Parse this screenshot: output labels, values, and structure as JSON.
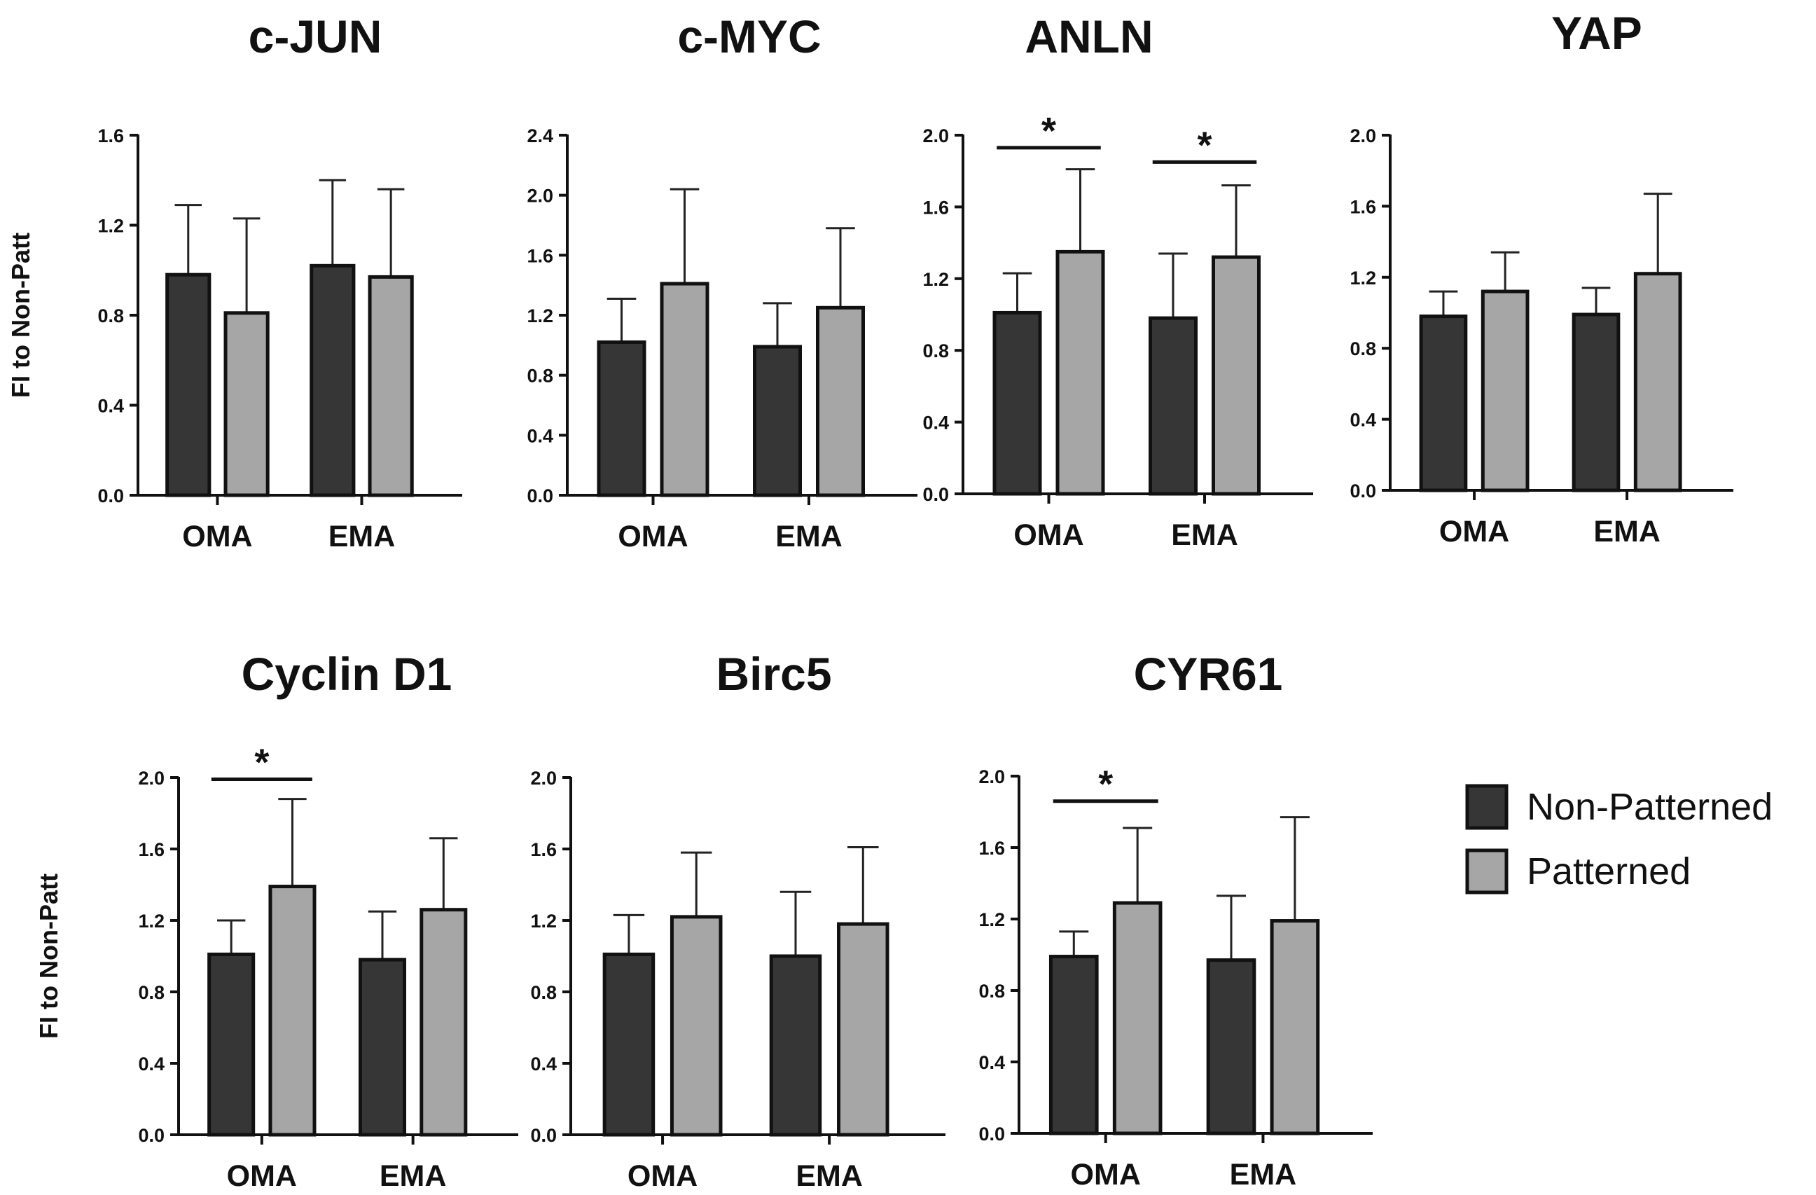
{
  "chart_data": [
    {
      "type": "bar",
      "title": "c-JUN",
      "ylabel": "FI to Non-Patt",
      "xlabel": "",
      "categories": [
        "OMA",
        "EMA"
      ],
      "ylim": [
        0,
        1.6
      ],
      "yticks": [
        "0.0",
        "0.4",
        "0.8",
        "1.2",
        "1.6"
      ],
      "series": [
        {
          "name": "Non-Patterned",
          "values": [
            0.98,
            1.02
          ],
          "errors": [
            0.31,
            0.38
          ]
        },
        {
          "name": "Patterned",
          "values": [
            0.81,
            0.97
          ],
          "errors": [
            0.42,
            0.39
          ]
        }
      ],
      "significance": []
    },
    {
      "type": "bar",
      "title": "c-MYC",
      "ylabel": "",
      "xlabel": "",
      "categories": [
        "OMA",
        "EMA"
      ],
      "ylim": [
        0,
        2.4
      ],
      "yticks": [
        "0.0",
        "0.4",
        "0.8",
        "1.2",
        "1.6",
        "2.0",
        "2.4"
      ],
      "series": [
        {
          "name": "Non-Patterned",
          "values": [
            1.02,
            0.99
          ],
          "errors": [
            0.29,
            0.29
          ]
        },
        {
          "name": "Patterned",
          "values": [
            1.41,
            1.25
          ],
          "errors": [
            0.63,
            0.53
          ]
        }
      ],
      "significance": []
    },
    {
      "type": "bar",
      "title": "ANLN",
      "ylabel": "",
      "xlabel": "",
      "categories": [
        "OMA",
        "EMA"
      ],
      "ylim": [
        0,
        2.0
      ],
      "yticks": [
        "0.0",
        "0.4",
        "0.8",
        "1.2",
        "1.6",
        "2.0"
      ],
      "series": [
        {
          "name": "Non-Patterned",
          "values": [
            1.01,
            0.98
          ],
          "errors": [
            0.22,
            0.36
          ]
        },
        {
          "name": "Patterned",
          "values": [
            1.35,
            1.32
          ],
          "errors": [
            0.46,
            0.4
          ]
        }
      ],
      "significance": [
        {
          "category": "OMA",
          "label": "*",
          "level": 1.93
        },
        {
          "category": "EMA",
          "label": "*",
          "level": 1.85
        }
      ]
    },
    {
      "type": "bar",
      "title": "YAP",
      "ylabel": "",
      "xlabel": "",
      "categories": [
        "OMA",
        "EMA"
      ],
      "ylim": [
        0,
        2.0
      ],
      "yticks": [
        "0.0",
        "0.4",
        "0.8",
        "1.2",
        "1.6",
        "2.0"
      ],
      "series": [
        {
          "name": "Non-Patterned",
          "values": [
            0.98,
            0.99
          ],
          "errors": [
            0.14,
            0.15
          ]
        },
        {
          "name": "Patterned",
          "values": [
            1.12,
            1.22
          ],
          "errors": [
            0.22,
            0.45
          ]
        }
      ],
      "significance": []
    },
    {
      "type": "bar",
      "title": "Cyclin D1",
      "ylabel": "FI to Non-Patt",
      "xlabel": "",
      "categories": [
        "OMA",
        "EMA"
      ],
      "ylim": [
        0,
        2.0
      ],
      "yticks": [
        "0.0",
        "0.4",
        "0.8",
        "1.2",
        "1.6",
        "2.0"
      ],
      "series": [
        {
          "name": "Non-Patterned",
          "values": [
            1.01,
            0.98
          ],
          "errors": [
            0.19,
            0.27
          ]
        },
        {
          "name": "Patterned",
          "values": [
            1.39,
            1.26
          ],
          "errors": [
            0.49,
            0.4
          ]
        }
      ],
      "significance": [
        {
          "category": "OMA",
          "label": "*",
          "level": 1.99
        }
      ]
    },
    {
      "type": "bar",
      "title": "Birc5",
      "ylabel": "",
      "xlabel": "",
      "categories": [
        "OMA",
        "EMA"
      ],
      "ylim": [
        0,
        2.0
      ],
      "yticks": [
        "0.0",
        "0.4",
        "0.8",
        "1.2",
        "1.6",
        "2.0"
      ],
      "series": [
        {
          "name": "Non-Patterned",
          "values": [
            1.01,
            1.0
          ],
          "errors": [
            0.22,
            0.36
          ]
        },
        {
          "name": "Patterned",
          "values": [
            1.22,
            1.18
          ],
          "errors": [
            0.36,
            0.43
          ]
        }
      ],
      "significance": []
    },
    {
      "type": "bar",
      "title": "CYR61",
      "ylabel": "",
      "xlabel": "",
      "categories": [
        "OMA",
        "EMA"
      ],
      "ylim": [
        0,
        2.0
      ],
      "yticks": [
        "0.0",
        "0.4",
        "0.8",
        "1.2",
        "1.6",
        "2.0"
      ],
      "series": [
        {
          "name": "Non-Patterned",
          "values": [
            0.99,
            0.97
          ],
          "errors": [
            0.14,
            0.36
          ]
        },
        {
          "name": "Patterned",
          "values": [
            1.29,
            1.19
          ],
          "errors": [
            0.42,
            0.58
          ]
        }
      ],
      "significance": [
        {
          "category": "OMA",
          "label": "*",
          "level": 1.86
        }
      ]
    }
  ],
  "legend": {
    "position": "bottom-right",
    "items": [
      {
        "label": "Non-Patterned",
        "color": "#363636"
      },
      {
        "label": "Patterned",
        "color": "#a6a6a6"
      }
    ]
  },
  "colors": {
    "non_patterned": "#363636",
    "patterned": "#a6a6a6",
    "axis": "#111111"
  }
}
